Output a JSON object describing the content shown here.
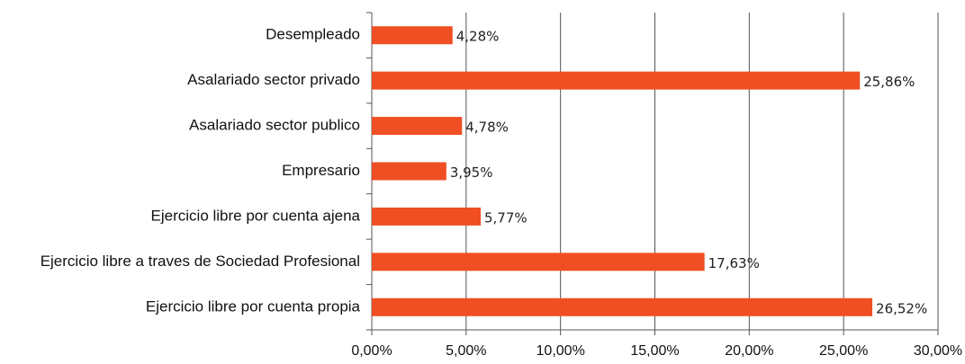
{
  "chart_data": {
    "type": "bar",
    "orientation": "horizontal",
    "categories": [
      "Desempleado",
      "Asalariado sector privado",
      "Asalariado sector publico",
      "Empresario",
      "Ejercicio libre por cuenta ajena",
      "Ejercicio libre a traves de Sociedad Profesional",
      "Ejercicio libre por cuenta propia"
    ],
    "values": [
      4.28,
      25.86,
      4.78,
      3.95,
      5.77,
      17.63,
      26.52
    ],
    "value_labels": [
      "4,28%",
      "25,86%",
      "4,78%",
      "3,95%",
      "5,77%",
      "17,63%",
      "26,52%"
    ],
    "color": "#f04e23",
    "xlim": [
      0,
      30
    ],
    "xticks": [
      {
        "value": 0,
        "label": "0,00%"
      },
      {
        "value": 5,
        "label": "5,00%"
      },
      {
        "value": 10,
        "label": "10,00%"
      },
      {
        "value": 15,
        "label": "15,00%"
      },
      {
        "value": 20,
        "label": "20,00%"
      },
      {
        "value": 25,
        "label": "25,00%"
      },
      {
        "value": 30,
        "label": "30,00%"
      }
    ],
    "grid": true
  }
}
